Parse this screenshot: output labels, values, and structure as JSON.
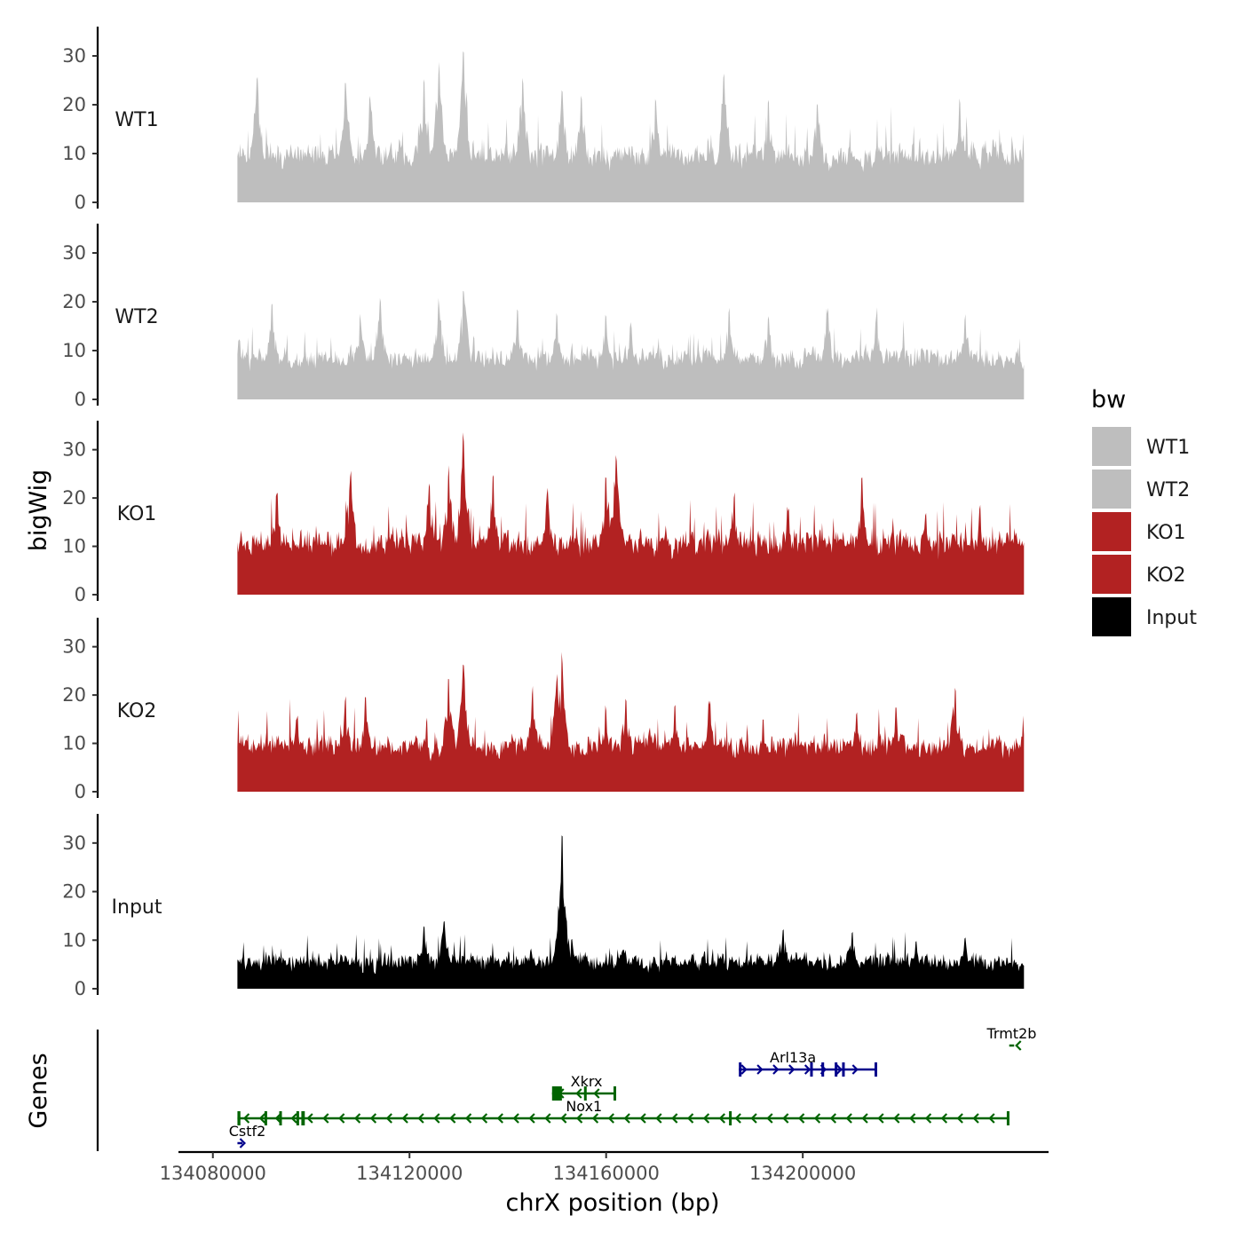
{
  "chart_data": {
    "type": "area",
    "title": "",
    "xlabel": "chrX position (bp)",
    "ylabel": "bigWig",
    "genes_label": "Genes",
    "xlim": [
      134073000,
      134250000
    ],
    "ylim": [
      0,
      36
    ],
    "data_range": [
      134085000,
      134245000
    ],
    "x_ticks": [
      134080000,
      134120000,
      134160000,
      134200000
    ],
    "x_tick_labels": [
      "134080000",
      "134120000",
      "134160000",
      "134200000"
    ],
    "y_ticks": [
      0,
      10,
      20,
      30
    ],
    "y_tick_labels": [
      "0",
      "10",
      "20",
      "30"
    ],
    "legend": {
      "title": "bw",
      "position": "right",
      "entries": [
        {
          "label": "WT1",
          "color": "#BEBEBE"
        },
        {
          "label": "WT2",
          "color": "#BEBEBE"
        },
        {
          "label": "KO1",
          "color": "#B22222"
        },
        {
          "label": "KO2",
          "color": "#B22222"
        },
        {
          "label": "Input",
          "color": "#000000"
        }
      ]
    },
    "series": [
      {
        "name": "WT1",
        "color": "#BEBEBE",
        "baseline": 8,
        "noise": 3.5,
        "max": 31,
        "peaks": [
          [
            134089000,
            27
          ],
          [
            134107000,
            25
          ],
          [
            134112000,
            23
          ],
          [
            134123000,
            26
          ],
          [
            134126000,
            29
          ],
          [
            134131000,
            31
          ],
          [
            134143000,
            27
          ],
          [
            134151000,
            23
          ],
          [
            134155000,
            22
          ],
          [
            134170000,
            22
          ],
          [
            134184000,
            27
          ],
          [
            134193000,
            21
          ],
          [
            134203000,
            22
          ],
          [
            134232000,
            22
          ]
        ]
      },
      {
        "name": "WT2",
        "color": "#BEBEBE",
        "baseline": 7,
        "noise": 3,
        "max": 23.5,
        "peaks": [
          [
            134085500,
            13
          ],
          [
            134092000,
            20
          ],
          [
            134110000,
            18
          ],
          [
            134114000,
            22
          ],
          [
            134126000,
            21
          ],
          [
            134131000,
            23.5
          ],
          [
            134142000,
            19
          ],
          [
            134150000,
            18
          ],
          [
            134160000,
            18
          ],
          [
            134165000,
            16
          ],
          [
            134185000,
            19
          ],
          [
            134193000,
            18
          ],
          [
            134205000,
            19
          ],
          [
            134215000,
            19
          ],
          [
            134233000,
            18
          ]
        ]
      },
      {
        "name": "KO1",
        "color": "#B22222",
        "baseline": 9,
        "noise": 3.8,
        "max": 34.5,
        "peaks": [
          [
            134093000,
            22
          ],
          [
            134108000,
            26
          ],
          [
            134124000,
            24
          ],
          [
            134128000,
            27
          ],
          [
            134131000,
            34.5
          ],
          [
            134137000,
            25
          ],
          [
            134148000,
            23
          ],
          [
            134160000,
            26
          ],
          [
            134162000,
            30
          ],
          [
            134186000,
            22
          ],
          [
            134197000,
            19
          ],
          [
            134212000,
            25
          ],
          [
            134225000,
            18
          ],
          [
            134236000,
            19
          ]
        ]
      },
      {
        "name": "KO2",
        "color": "#B22222",
        "baseline": 8,
        "noise": 3.4,
        "max": 29,
        "peaks": [
          [
            134097000,
            16
          ],
          [
            134107000,
            20
          ],
          [
            134111000,
            20
          ],
          [
            134128000,
            25
          ],
          [
            134131000,
            27
          ],
          [
            134145000,
            22
          ],
          [
            134150000,
            25
          ],
          [
            134151000,
            29
          ],
          [
            134160000,
            18
          ],
          [
            134164000,
            20
          ],
          [
            134174000,
            18
          ],
          [
            134181000,
            20
          ],
          [
            134192000,
            15
          ],
          [
            134211000,
            17
          ],
          [
            134219000,
            18
          ],
          [
            134231000,
            23
          ]
        ]
      },
      {
        "name": "Input",
        "color": "#000000",
        "baseline": 4.5,
        "noise": 2.5,
        "max": 32,
        "peaks": [
          [
            134151000,
            32
          ],
          [
            134150500,
            14
          ],
          [
            134127000,
            14
          ],
          [
            134123000,
            13
          ],
          [
            134153000,
            11
          ],
          [
            134196000,
            13
          ],
          [
            134210000,
            12
          ],
          [
            134223000,
            10
          ],
          [
            134233000,
            11
          ]
        ]
      }
    ],
    "genes": [
      {
        "name": "Cstf2",
        "color": "#00008B",
        "start": 134085000,
        "end": 134086000,
        "strand": "+",
        "row": 0,
        "label_x": 134087000,
        "exons": []
      },
      {
        "name": "Nox1",
        "color": "#006400",
        "start": 134085000,
        "end": 134242000,
        "strand": "-",
        "row": 1,
        "label_x": 134155500,
        "exons": [
          [
            134085000,
            134085600
          ],
          [
            134090500,
            134090900
          ],
          [
            134093500,
            134094000
          ],
          [
            134097000,
            134097400
          ],
          [
            134098000,
            134098700
          ],
          [
            134185000,
            134185400
          ],
          [
            134241500,
            134242000
          ]
        ]
      },
      {
        "name": "Xkrx",
        "color": "#006400",
        "start": 134149000,
        "end": 134162000,
        "strand": "-",
        "row": 2,
        "label_x": 134156000,
        "exons": [
          [
            134149000,
            134151000
          ],
          [
            134155500,
            134155900
          ],
          [
            134161500,
            134162000
          ]
        ]
      },
      {
        "name": "Arl13a",
        "color": "#00008B",
        "start": 134187000,
        "end": 134215000,
        "strand": "+",
        "row": 3,
        "label_x": 134198000,
        "exons": [
          [
            134187000,
            134187400
          ],
          [
            134201500,
            134201900
          ],
          [
            134203800,
            134204200
          ],
          [
            134206500,
            134206900
          ],
          [
            134208000,
            134208400
          ],
          [
            134214600,
            134215000
          ]
        ]
      },
      {
        "name": "Trmt2b",
        "color": "#006400",
        "start": 134242000,
        "end": 134243000,
        "strand": "-",
        "row": 4,
        "label_x": 134242500,
        "exons": []
      }
    ]
  }
}
